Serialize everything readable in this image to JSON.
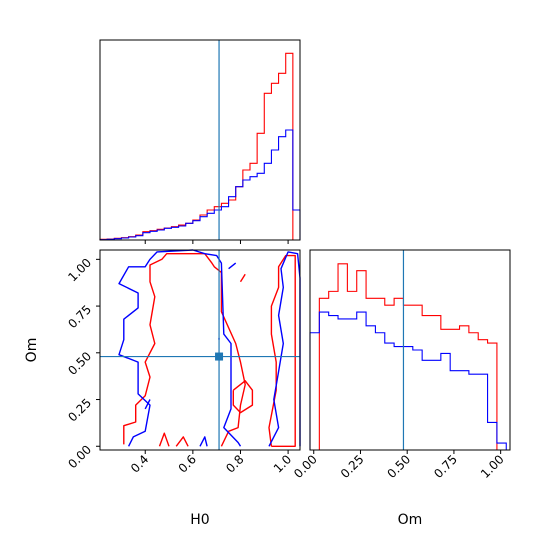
{
  "chart_data": {
    "type": "corner",
    "parameters": [
      "H0",
      "Om"
    ],
    "truth": {
      "H0": 0.71,
      "Om": 0.48
    },
    "colors": {
      "red": "#ff0000",
      "blue": "#0000ff",
      "truth": "#1f77b4"
    },
    "hist_H0": {
      "bin_edges": [
        0.21,
        0.24,
        0.27,
        0.3,
        0.33,
        0.36,
        0.39,
        0.42,
        0.45,
        0.48,
        0.51,
        0.54,
        0.57,
        0.6,
        0.63,
        0.66,
        0.69,
        0.72,
        0.75,
        0.78,
        0.81,
        0.84,
        0.87,
        0.9,
        0.93,
        0.96,
        0.99,
        1.02,
        1.05
      ],
      "series": [
        {
          "color": "red",
          "values": [
            0.2,
            0.3,
            0.5,
            0.7,
            1,
            1.5,
            2.5,
            2.8,
            3.2,
            3.6,
            4,
            4.5,
            5,
            6,
            7.5,
            9,
            10,
            11,
            12,
            16,
            21,
            23,
            32,
            44,
            47,
            50,
            56,
            0
          ]
        },
        {
          "color": "blue",
          "values": [
            0.1,
            0.2,
            0.4,
            0.6,
            0.9,
            1.3,
            2.2,
            2.6,
            3,
            3.5,
            3.8,
            4.2,
            5,
            5.8,
            7,
            8,
            9,
            10,
            13,
            16,
            18,
            19,
            20,
            23,
            27,
            31,
            33,
            9
          ]
        }
      ]
    },
    "hist_Om": {
      "bin_edges": [
        -0.02,
        0.03,
        0.08,
        0.13,
        0.18,
        0.23,
        0.28,
        0.33,
        0.38,
        0.43,
        0.48,
        0.53,
        0.58,
        0.63,
        0.68,
        0.73,
        0.78,
        0.83,
        0.88,
        0.93,
        0.98,
        1.03
      ],
      "series": [
        {
          "color": "red",
          "values": [
            0,
            44,
            46,
            54,
            46,
            52,
            44,
            44,
            42,
            44,
            42,
            42,
            39,
            39,
            35,
            35,
            36,
            34,
            32,
            31,
            0
          ]
        },
        {
          "color": "blue",
          "values": [
            34,
            40,
            39,
            38,
            38,
            40,
            36,
            34,
            31,
            30,
            30,
            29,
            26,
            26,
            28,
            23,
            23,
            22,
            22,
            8,
            2
          ]
        }
      ]
    },
    "contour_2d": {
      "series": [
        {
          "color": "red",
          "paths": [
            [
              [
                0.31,
                0.01
              ],
              [
                0.31,
                0.11
              ],
              [
                0.36,
                0.13
              ],
              [
                0.36,
                0.22
              ],
              [
                0.4,
                0.27
              ],
              [
                0.42,
                0.37
              ],
              [
                0.4,
                0.45
              ],
              [
                0.44,
                0.55
              ],
              [
                0.42,
                0.65
              ],
              [
                0.44,
                0.8
              ],
              [
                0.42,
                0.88
              ],
              [
                0.42,
                0.97
              ],
              [
                0.47,
                1.0
              ],
              [
                0.49,
                1.03
              ],
              [
                0.65,
                1.03
              ],
              [
                0.68,
                0.98
              ],
              [
                0.69,
                0.96
              ],
              [
                0.72,
                0.93
              ],
              [
                0.72,
                0.72
              ],
              [
                0.78,
                0.55
              ],
              [
                0.8,
                0.45
              ],
              [
                0.82,
                0.33
              ],
              [
                0.8,
                0.22
              ],
              [
                0.79,
                0.1
              ],
              [
                0.75,
                0.08
              ],
              [
                0.72,
                0.0
              ]
            ],
            [
              [
                0.93,
                0.0
              ],
              [
                1.03,
                0.0
              ],
              [
                1.03,
                1.02
              ],
              [
                0.99,
                1.02
              ],
              [
                0.96,
                0.96
              ],
              [
                0.96,
                0.85
              ],
              [
                0.93,
                0.75
              ],
              [
                0.93,
                0.6
              ],
              [
                0.95,
                0.45
              ],
              [
                0.95,
                0.3
              ],
              [
                0.92,
                0.1
              ],
              [
                0.93,
                0.0
              ]
            ],
            [
              [
                0.77,
                0.3
              ],
              [
                0.82,
                0.35
              ],
              [
                0.85,
                0.3
              ],
              [
                0.85,
                0.22
              ],
              [
                0.8,
                0.18
              ],
              [
                0.77,
                0.22
              ],
              [
                0.77,
                0.3
              ]
            ],
            [
              [
                0.46,
                0.0
              ],
              [
                0.48,
                0.07
              ],
              [
                0.5,
                0.0
              ]
            ],
            [
              [
                0.53,
                0.0
              ],
              [
                0.56,
                0.05
              ],
              [
                0.58,
                0.0
              ]
            ],
            [
              [
                0.8,
                0.88
              ],
              [
                0.82,
                0.92
              ]
            ]
          ]
        },
        {
          "color": "blue",
          "paths": [
            [
              [
                0.33,
                0.0
              ],
              [
                0.35,
                0.05
              ],
              [
                0.4,
                0.08
              ],
              [
                0.42,
                0.22
              ],
              [
                0.37,
                0.28
              ],
              [
                0.37,
                0.45
              ],
              [
                0.29,
                0.49
              ],
              [
                0.31,
                0.57
              ],
              [
                0.31,
                0.68
              ],
              [
                0.37,
                0.74
              ],
              [
                0.37,
                0.82
              ],
              [
                0.29,
                0.87
              ],
              [
                0.33,
                0.96
              ],
              [
                0.4,
                0.96
              ],
              [
                0.42,
                1.0
              ],
              [
                0.45,
                1.04
              ],
              [
                0.6,
                1.05
              ],
              [
                0.65,
                1.03
              ],
              [
                0.7,
                1.02
              ],
              [
                0.72,
                0.98
              ],
              [
                0.73,
                0.6
              ],
              [
                0.76,
                0.55
              ],
              [
                0.76,
                0.2
              ],
              [
                0.73,
                0.1
              ],
              [
                0.79,
                0.02
              ],
              [
                0.8,
                0.0
              ]
            ],
            [
              [
                0.92,
                0.0
              ],
              [
                0.94,
                0.05
              ],
              [
                0.96,
                0.1
              ],
              [
                0.94,
                0.25
              ],
              [
                0.96,
                0.4
              ],
              [
                0.98,
                0.55
              ],
              [
                0.96,
                0.7
              ],
              [
                0.98,
                0.85
              ],
              [
                0.97,
                0.95
              ],
              [
                1.0,
                1.04
              ],
              [
                1.04,
                1.03
              ],
              [
                1.05,
                0.9
              ],
              [
                1.05,
                0.0
              ]
            ],
            [
              [
                0.63,
                0.0
              ],
              [
                0.65,
                0.05
              ],
              [
                0.66,
                0.0
              ]
            ],
            [
              [
                0.71,
                0.57
              ],
              [
                0.71,
                0.58
              ]
            ],
            [
              [
                0.75,
                0.95
              ],
              [
                0.78,
                0.98
              ]
            ],
            [
              [
                0.4,
                0.2
              ],
              [
                0.42,
                0.25
              ]
            ]
          ]
        }
      ]
    },
    "axes": {
      "H0": {
        "label": "H0",
        "range": [
          0.21,
          1.05
        ],
        "ticks": [
          0.4,
          0.6,
          0.8,
          1.0
        ],
        "tick_labels": [
          "0.4",
          "0.6",
          "0.8",
          "1.0"
        ]
      },
      "Om": {
        "label": "Om",
        "range": [
          -0.02,
          1.05
        ],
        "ticks": [
          0.0,
          0.25,
          0.5,
          0.75,
          1.0
        ],
        "tick_labels": [
          "0.00",
          "0.25",
          "0.50",
          "0.75",
          "1.00"
        ]
      }
    },
    "hist_ylim_H0": [
      0,
      60
    ],
    "hist_ylim_Om": [
      0,
      58
    ]
  }
}
